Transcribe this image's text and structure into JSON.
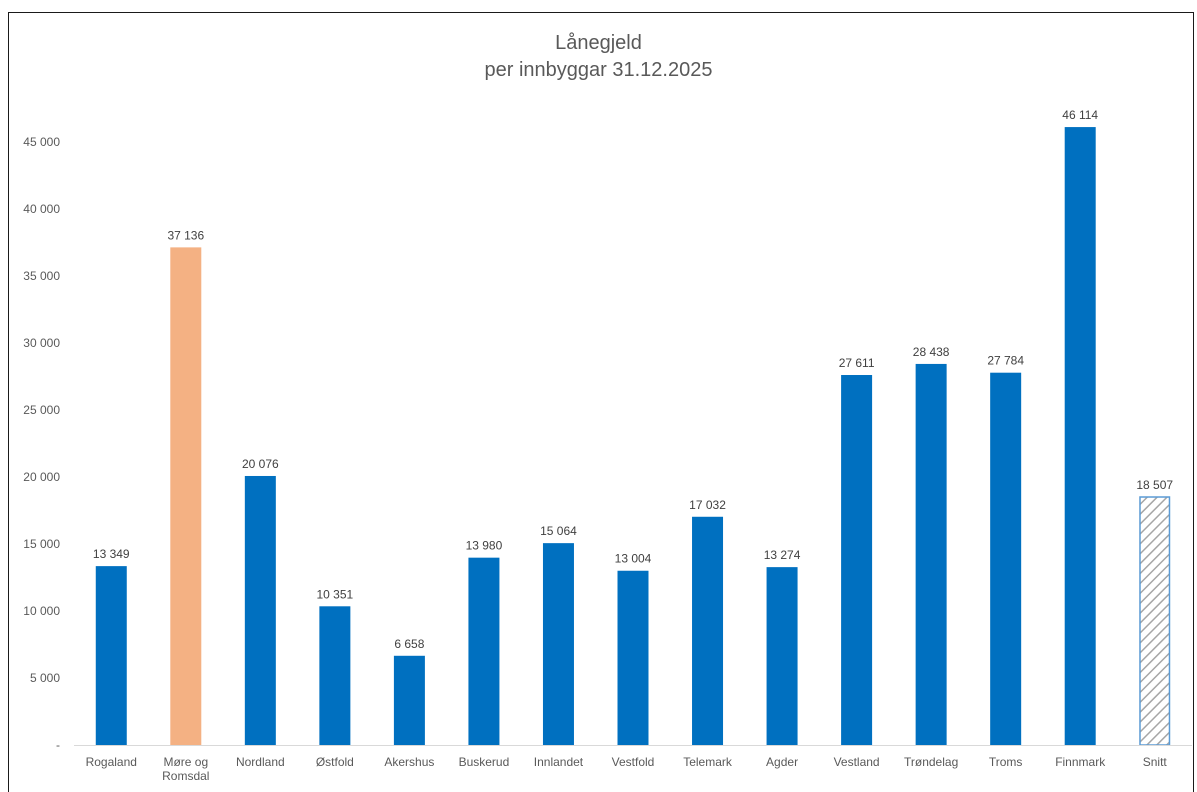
{
  "chart_data": {
    "type": "bar",
    "title": "Lånegjeld",
    "subtitle": "per innbyggar 31.12.2025",
    "categories": [
      "Rogaland",
      "Møre og Romsdal",
      "Nordland",
      "Østfold",
      "Akershus",
      "Buskerud",
      "Innlandet",
      "Vestfold",
      "Telemark",
      "Agder",
      "Vestland",
      "Trøndelag",
      "Troms",
      "Finnmark",
      "Snitt"
    ],
    "category_display_lines": [
      [
        "Rogaland"
      ],
      [
        "Møre og",
        "Romsdal"
      ],
      [
        "Nordland"
      ],
      [
        "Østfold"
      ],
      [
        "Akershus"
      ],
      [
        "Buskerud"
      ],
      [
        "Innlandet"
      ],
      [
        "Vestfold"
      ],
      [
        "Telemark"
      ],
      [
        "Agder"
      ],
      [
        "Vestland"
      ],
      [
        "Trøndelag"
      ],
      [
        "Troms"
      ],
      [
        "Finnmark"
      ],
      [
        "Snitt"
      ]
    ],
    "values": [
      13349,
      37136,
      20076,
      10351,
      6658,
      13980,
      15064,
      13004,
      17032,
      13274,
      27611,
      28438,
      27784,
      46114,
      18507
    ],
    "data_labels": [
      "13 349",
      "37 136",
      "20 076",
      "10 351",
      "6 658",
      "13 980",
      "15 064",
      "13 004",
      "17 032",
      "13 274",
      "27 611",
      "28 438",
      "27 784",
      "46 114",
      "18 507"
    ],
    "bar_styles": [
      "solid",
      "solid",
      "solid",
      "solid",
      "solid",
      "solid",
      "solid",
      "solid",
      "solid",
      "solid",
      "solid",
      "solid",
      "solid",
      "solid",
      "hatched"
    ],
    "bar_colors": [
      "#0070c0",
      "#f4b183",
      "#0070c0",
      "#0070c0",
      "#0070c0",
      "#0070c0",
      "#0070c0",
      "#0070c0",
      "#0070c0",
      "#0070c0",
      "#0070c0",
      "#0070c0",
      "#0070c0",
      "#0070c0",
      "#5b9bd5"
    ],
    "y_ticks": [
      0,
      5000,
      10000,
      15000,
      20000,
      25000,
      30000,
      35000,
      40000,
      45000
    ],
    "y_tick_labels": [
      "-",
      "5 000",
      "10 000",
      "15 000",
      "20 000",
      "25 000",
      "30 000",
      "35 000",
      "40 000",
      "45 000"
    ],
    "ylim": [
      0,
      45000
    ],
    "grid": false,
    "legend": "none"
  }
}
